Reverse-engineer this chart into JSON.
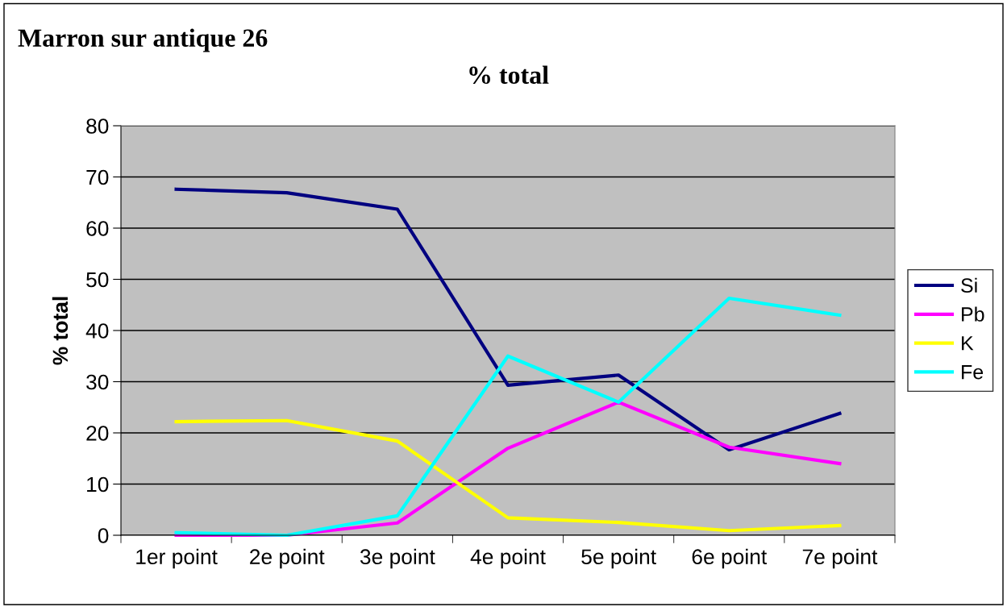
{
  "chart_data": {
    "type": "line",
    "title": "Marron sur antique 26",
    "subtitle": "% total",
    "ylabel": "% total",
    "categories": [
      "1er point",
      "2e point",
      "3e point",
      "4e point",
      "5e point",
      "6e point",
      "7e point"
    ],
    "series": [
      {
        "name": "Si",
        "color": "#000080",
        "values": [
          67.6,
          66.9,
          63.7,
          29.3,
          31.3,
          16.7,
          23.8
        ]
      },
      {
        "name": "Pb",
        "color": "#ff00ff",
        "values": [
          0,
          0,
          2.4,
          17,
          26,
          17.2,
          14
        ]
      },
      {
        "name": "K",
        "color": "#ffff00",
        "values": [
          22.2,
          22.4,
          18.4,
          3.4,
          2.5,
          0.9,
          1.9
        ]
      },
      {
        "name": "Fe",
        "color": "#00ffff",
        "values": [
          0.5,
          0,
          3.8,
          35,
          26,
          46.3,
          43
        ]
      }
    ],
    "ylim": [
      0,
      80
    ],
    "yticks": [
      0,
      10,
      20,
      30,
      40,
      50,
      60,
      70,
      80
    ],
    "grid": "y",
    "legend": "right",
    "marker": "none",
    "line_style": "solid"
  }
}
